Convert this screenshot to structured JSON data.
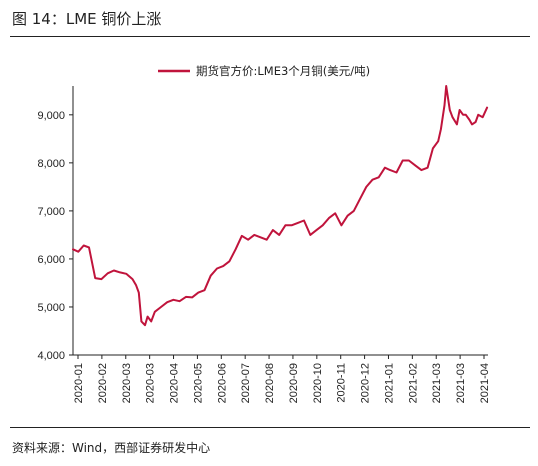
{
  "figure": {
    "title": "图 14：LME 铜价上涨",
    "source": "资料来源：Wind，西部证券研发中心"
  },
  "colors": {
    "series": "#c0143c",
    "axis": "#222222",
    "text": "#222222"
  },
  "chart_data": {
    "type": "line",
    "series": [
      {
        "name": "期货官方价:LME3个月铜(美元/吨)",
        "points": [
          [
            "2020-01-02",
            6200
          ],
          [
            "2020-01-08",
            6150
          ],
          [
            "2020-01-14",
            6280
          ],
          [
            "2020-01-20",
            6240
          ],
          [
            "2020-01-27",
            5600
          ],
          [
            "2020-02-03",
            5580
          ],
          [
            "2020-02-10",
            5700
          ],
          [
            "2020-02-17",
            5760
          ],
          [
            "2020-02-24",
            5720
          ],
          [
            "2020-03-02",
            5690
          ],
          [
            "2020-03-09",
            5580
          ],
          [
            "2020-03-13",
            5450
          ],
          [
            "2020-03-16",
            5300
          ],
          [
            "2020-03-19",
            4700
          ],
          [
            "2020-03-23",
            4620
          ],
          [
            "2020-03-26",
            4800
          ],
          [
            "2020-03-30",
            4700
          ],
          [
            "2020-04-03",
            4900
          ],
          [
            "2020-04-10",
            5000
          ],
          [
            "2020-04-17",
            5100
          ],
          [
            "2020-04-24",
            5150
          ],
          [
            "2020-05-01",
            5120
          ],
          [
            "2020-05-08",
            5210
          ],
          [
            "2020-05-15",
            5200
          ],
          [
            "2020-05-22",
            5300
          ],
          [
            "2020-05-29",
            5350
          ],
          [
            "2020-06-05",
            5650
          ],
          [
            "2020-06-12",
            5800
          ],
          [
            "2020-06-19",
            5850
          ],
          [
            "2020-06-26",
            5950
          ],
          [
            "2020-07-03",
            6200
          ],
          [
            "2020-07-10",
            6480
          ],
          [
            "2020-07-17",
            6400
          ],
          [
            "2020-07-24",
            6500
          ],
          [
            "2020-07-31",
            6450
          ],
          [
            "2020-08-07",
            6400
          ],
          [
            "2020-08-14",
            6600
          ],
          [
            "2020-08-21",
            6500
          ],
          [
            "2020-08-28",
            6700
          ],
          [
            "2020-09-04",
            6700
          ],
          [
            "2020-09-11",
            6750
          ],
          [
            "2020-09-18",
            6800
          ],
          [
            "2020-09-25",
            6500
          ],
          [
            "2020-10-02",
            6600
          ],
          [
            "2020-10-09",
            6700
          ],
          [
            "2020-10-16",
            6850
          ],
          [
            "2020-10-23",
            6950
          ],
          [
            "2020-10-30",
            6700
          ],
          [
            "2020-11-06",
            6900
          ],
          [
            "2020-11-13",
            7000
          ],
          [
            "2020-11-20",
            7250
          ],
          [
            "2020-11-27",
            7500
          ],
          [
            "2020-12-04",
            7650
          ],
          [
            "2020-12-11",
            7700
          ],
          [
            "2020-12-18",
            7900
          ],
          [
            "2020-12-24",
            7850
          ],
          [
            "2020-12-31",
            7800
          ],
          [
            "2021-01-07",
            8050
          ],
          [
            "2021-01-14",
            8050
          ],
          [
            "2021-01-21",
            7950
          ],
          [
            "2021-01-28",
            7850
          ],
          [
            "2021-02-04",
            7900
          ],
          [
            "2021-02-10",
            8300
          ],
          [
            "2021-02-16",
            8450
          ],
          [
            "2021-02-19",
            8700
          ],
          [
            "2021-02-23",
            9200
          ],
          [
            "2021-02-25",
            9600
          ],
          [
            "2021-03-01",
            9100
          ],
          [
            "2021-03-04",
            8950
          ],
          [
            "2021-03-09",
            8800
          ],
          [
            "2021-03-12",
            9100
          ],
          [
            "2021-03-16",
            9000
          ],
          [
            "2021-03-19",
            9000
          ],
          [
            "2021-03-23",
            8900
          ],
          [
            "2021-03-26",
            8800
          ],
          [
            "2021-03-30",
            8850
          ],
          [
            "2021-04-02",
            9000
          ],
          [
            "2021-04-07",
            8950
          ],
          [
            "2021-04-12",
            9150
          ]
        ]
      }
    ],
    "x_ticks": [
      "2020-01",
      "2020-02",
      "2020-03",
      "2020-03",
      "2020-04",
      "2020-05",
      "2020-06",
      "2020-07",
      "2020-08",
      "2020-09",
      "2020-10",
      "2020-11",
      "2020-12",
      "2021-01",
      "2021-02",
      "2021-03",
      "2021-03",
      "2021-04"
    ],
    "x_range": [
      "2020-01-02",
      "2021-04-13"
    ],
    "y_ticks": [
      4000,
      5000,
      6000,
      7000,
      8000,
      9000
    ],
    "y_tick_labels": [
      "4,000",
      "5,000",
      "6,000",
      "7,000",
      "8,000",
      "9,000"
    ],
    "ylim": [
      4000,
      9600
    ],
    "grid": false,
    "legend": "top"
  }
}
